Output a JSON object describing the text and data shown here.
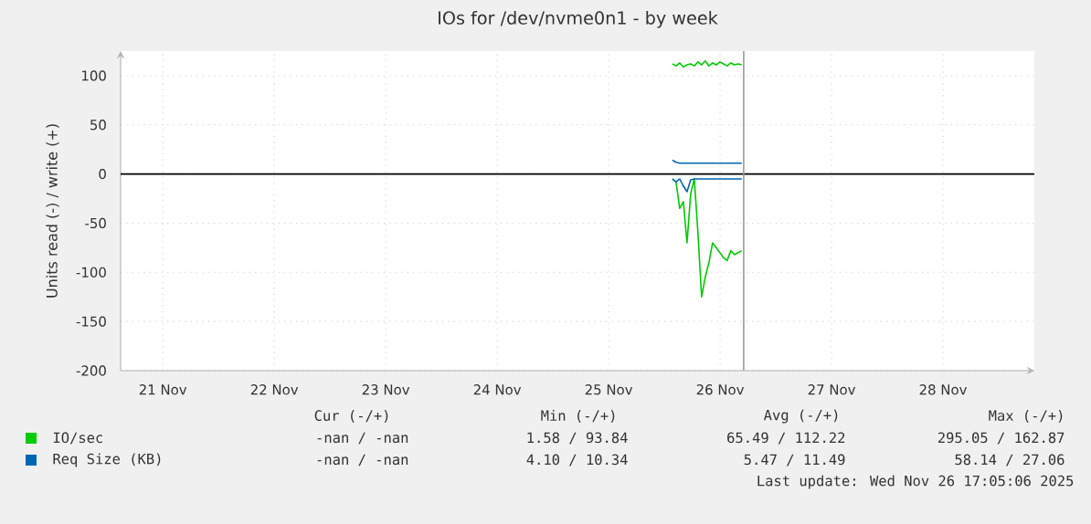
{
  "chart_data": {
    "type": "line",
    "title": "IOs for /dev/nvme0n1 - by week",
    "ylabel": "Units read (-) / write (+)",
    "x": [
      "2025-11-26T01:44",
      "2025-11-26T02:31",
      "2025-11-26T03:18",
      "2025-11-26T04:05",
      "2025-11-26T04:53",
      "2025-11-26T05:40",
      "2025-11-26T06:27",
      "2025-11-26T07:14",
      "2025-11-26T08:01",
      "2025-11-26T08:48",
      "2025-11-26T09:36",
      "2025-11-26T10:23",
      "2025-11-26T11:10",
      "2025-11-26T11:57",
      "2025-11-26T12:44",
      "2025-11-26T13:31",
      "2025-11-26T14:19",
      "2025-11-26T15:06",
      "2025-11-26T15:53",
      "2025-11-26T16:40"
    ],
    "series": [
      {
        "name": "IO/sec",
        "color": "#00cc00",
        "values": [
          112,
          110,
          113,
          109,
          111,
          112,
          110,
          114,
          111,
          115,
          110,
          113,
          111,
          114,
          112,
          110,
          113,
          111,
          112,
          111
        ]
      },
      {
        "color": "#00cc00",
        "values": [
          -5,
          -8,
          -35,
          -28,
          -70,
          -20,
          -5,
          -60,
          -125,
          -105,
          -90,
          -70,
          -75,
          -80,
          -85,
          -88,
          -78,
          -82,
          -80,
          -78
        ]
      },
      {
        "name": "Req Size (KB)",
        "color": "#0066b3",
        "values": [
          14,
          12,
          11,
          11,
          11,
          11,
          11,
          11,
          11,
          11,
          11,
          11,
          11,
          11,
          11,
          11,
          11,
          11,
          11,
          11
        ]
      },
      {
        "color": "#0066b3",
        "values": [
          -5,
          -8,
          -5,
          -12,
          -18,
          -6,
          -5,
          -5,
          -5,
          -5,
          -5,
          -5,
          -5,
          -5,
          -5,
          -5,
          -5,
          -5,
          -5,
          -5
        ]
      }
    ],
    "xlim": [
      "2025-11-21T02:55",
      "2025-11-29T07:40"
    ],
    "xticks": [
      {
        "value": "2025-11-21T12:00",
        "label": "21 Nov"
      },
      {
        "value": "2025-11-22T12:00",
        "label": "22 Nov"
      },
      {
        "value": "2025-11-23T12:00",
        "label": "23 Nov"
      },
      {
        "value": "2025-11-24T12:00",
        "label": "24 Nov"
      },
      {
        "value": "2025-11-25T12:00",
        "label": "25 Nov"
      },
      {
        "value": "2025-11-26T12:00",
        "label": "26 Nov"
      },
      {
        "value": "2025-11-27T12:00",
        "label": "27 Nov"
      },
      {
        "value": "2025-11-28T12:00",
        "label": "28 Nov"
      }
    ],
    "ylim": [
      -200,
      125
    ],
    "yticks": [
      -200,
      -150,
      -100,
      -50,
      0,
      50,
      100
    ],
    "ref_lines": [
      {
        "axis": "y",
        "value": 0,
        "color": "#000000"
      },
      {
        "axis": "x",
        "value": "2025-11-26T17:05",
        "color": "#999999"
      }
    ],
    "grid": true,
    "legend": "bottom left",
    "marker": "none",
    "line_style": "solid",
    "annotations": [
      "Cur (-/+)",
      "Min (-/+)",
      "Avg (-/+)",
      "Max (-/+)",
      "-nan /   -nan",
      "1.58 /  93.84",
      "65.49 / 112.22",
      "295.05 / 162.87",
      "-nan /   -nan",
      "4.10 /  10.34",
      "5.47 /  11.49",
      "58.14 /  27.06",
      "Last update: Wed Nov 26 17:05:06 2025"
    ]
  }
}
